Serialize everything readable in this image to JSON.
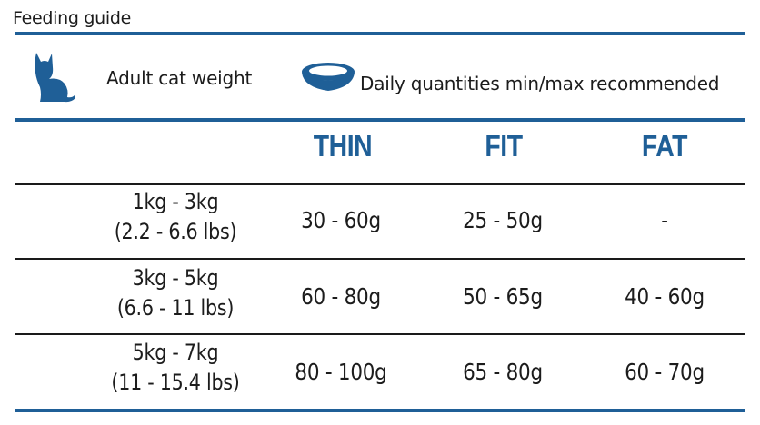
{
  "title": "Feeding guide",
  "header": {
    "weight_label": "Adult cat weight",
    "quantity_label": "Daily quantities min/max recommended",
    "cat_icon": "cat-silhouette-icon",
    "bowl_icon": "food-bowl-icon"
  },
  "columns": [
    "THIN",
    "FIT",
    "FAT"
  ],
  "rows": [
    {
      "weight_kg": "1kg - 3kg",
      "weight_lbs": "(2.2 - 6.6 lbs)",
      "values": [
        "30 - 60g",
        "25 - 50g",
        "-"
      ]
    },
    {
      "weight_kg": "3kg - 5kg",
      "weight_lbs": "(6.6 - 11 lbs)",
      "values": [
        "60 - 80g",
        "50 - 65g",
        "40 - 60g"
      ]
    },
    {
      "weight_kg": "5kg - 7kg",
      "weight_lbs": "(11 - 15.4 lbs)",
      "values": [
        "80 - 100g",
        "65 - 80g",
        "60 - 70g"
      ]
    }
  ],
  "colors": {
    "accent": "#1f5f97",
    "text": "#1c1c1c",
    "rule": "#1a1a1a"
  }
}
